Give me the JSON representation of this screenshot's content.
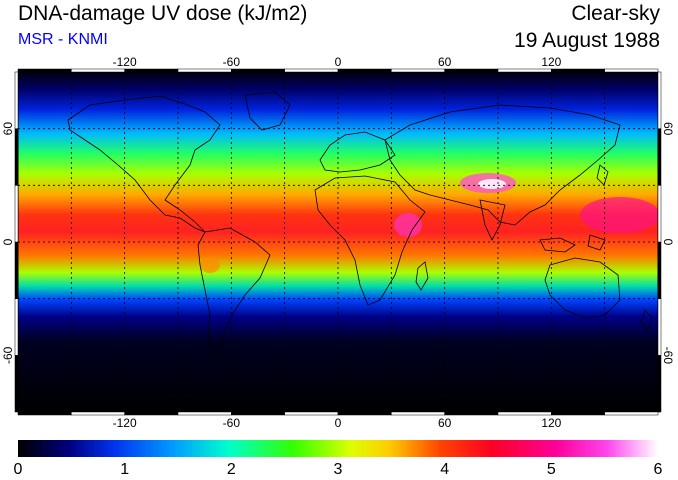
{
  "header": {
    "title": "DNA-damage UV dose (kJ/m2)",
    "subtitle": "MSR - KNMI",
    "condition": "Clear-sky",
    "date": "19 August 1988"
  },
  "colors": {
    "subtitle": "#0000ff",
    "background": "#ffffff"
  },
  "map": {
    "lon_range": [
      -180,
      180
    ],
    "lat_range": [
      -90,
      90
    ],
    "lon_gridlines": [
      -150,
      -120,
      -90,
      -60,
      -30,
      0,
      30,
      60,
      90,
      120,
      150
    ],
    "lat_gridlines": [
      -60,
      -30,
      0,
      30,
      60
    ],
    "lon_labels": [
      "-120",
      "-60",
      "0",
      "60",
      "120"
    ],
    "lon_label_values": [
      -120,
      -60,
      0,
      60,
      120
    ],
    "lat_labels": [
      "60",
      "0",
      "-60"
    ],
    "lat_label_values": [
      60,
      0,
      -60
    ]
  },
  "colorbar": {
    "min": 0,
    "max": 6,
    "labels": [
      "0",
      "1",
      "2",
      "3",
      "4",
      "5",
      "6"
    ],
    "stops": [
      "#000000",
      "#0000aa",
      "#0055ff",
      "#00ccff",
      "#00ff88",
      "#33ff00",
      "#ccff00",
      "#ffff00",
      "#ff9900",
      "#ff2200",
      "#ff0066",
      "#ff00cc",
      "#ffccff",
      "#ffffff"
    ]
  }
}
